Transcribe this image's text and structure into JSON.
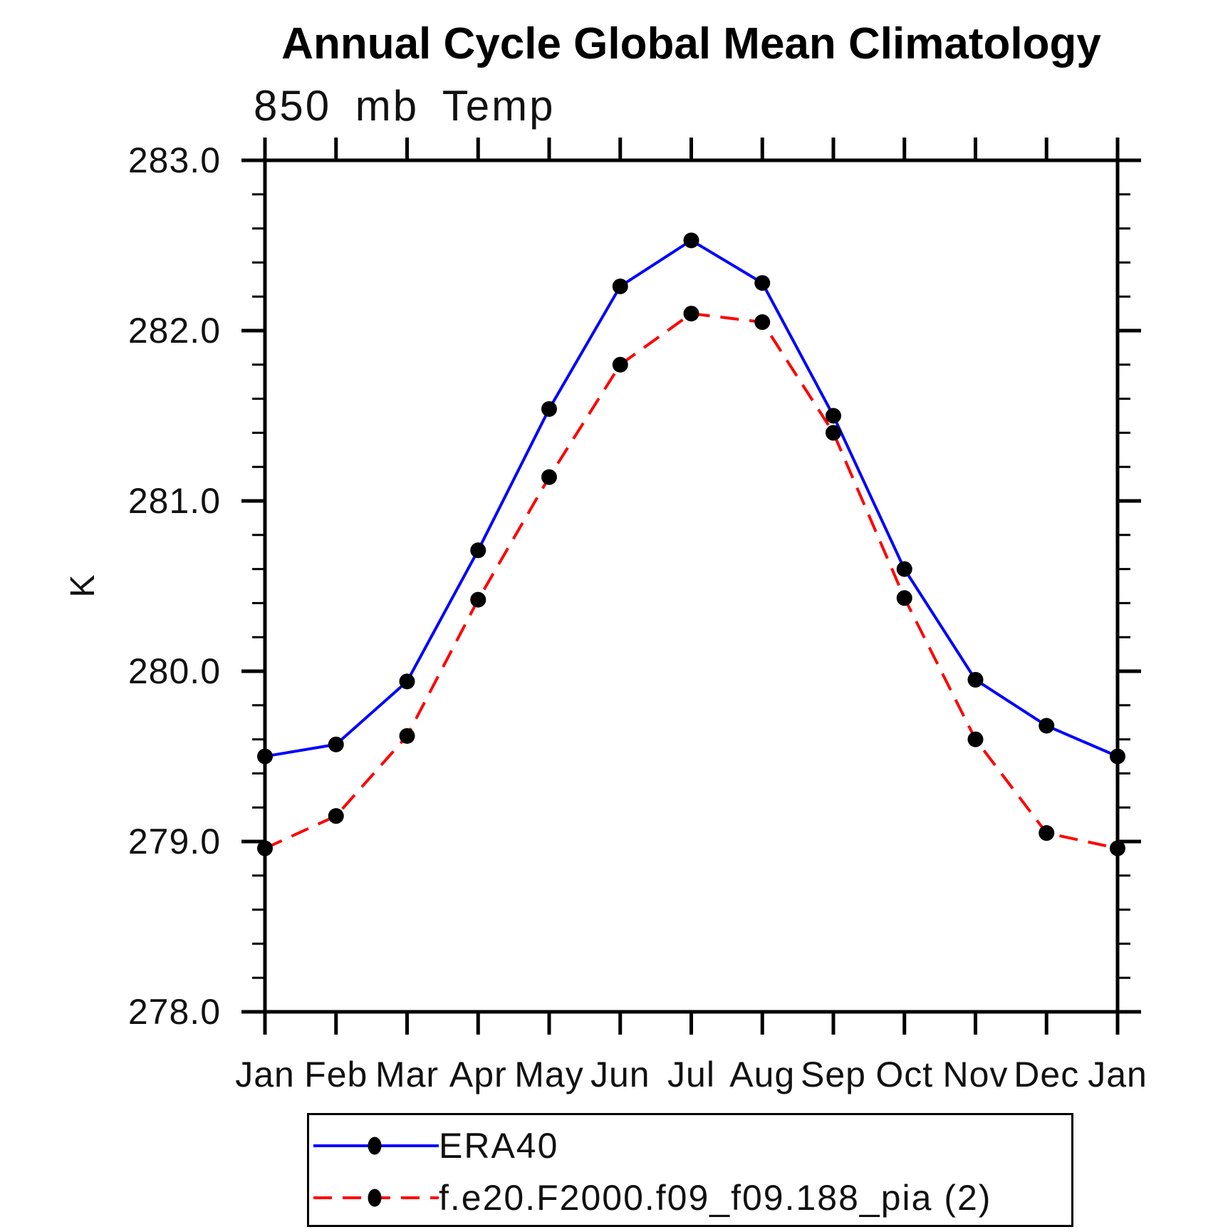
{
  "chart_data": {
    "type": "line",
    "title": "Annual Cycle Global Mean Climatology",
    "subtitle": "850 mb Temp",
    "ylabel": "K",
    "x_categories": [
      "Jan",
      "Feb",
      "Mar",
      "Apr",
      "May",
      "Jun",
      "Jul",
      "Aug",
      "Sep",
      "Oct",
      "Nov",
      "Dec",
      "Jan"
    ],
    "ylim": [
      278.0,
      283.0
    ],
    "ytick_labels": [
      "283.0",
      "282.0",
      "281.0",
      "280.0",
      "279.0",
      "278.0"
    ],
    "ytick_interval_major": 1.0,
    "ytick_interval_minor": 0.2,
    "grid": false,
    "axis_color": "#000000",
    "background_color": "#ffffff",
    "legend_position": "bottom-left-box",
    "series": [
      {
        "name": "ERA40",
        "color": "#0000ff",
        "line_style": "solid",
        "marker": "filled-circle",
        "marker_color": "#000000",
        "values": [
          279.5,
          279.57,
          279.94,
          280.71,
          281.54,
          282.26,
          282.53,
          282.28,
          281.5,
          280.6,
          279.95,
          279.68,
          279.5
        ]
      },
      {
        "name": "f.e20.F2000.f09_f09.188_pia (2)",
        "color": "#ff0000",
        "line_style": "dashed",
        "marker": "filled-circle",
        "marker_color": "#000000",
        "values": [
          278.96,
          279.15,
          279.62,
          280.42,
          281.14,
          281.8,
          282.1,
          282.05,
          281.4,
          280.43,
          279.6,
          279.05,
          278.96
        ]
      }
    ]
  }
}
